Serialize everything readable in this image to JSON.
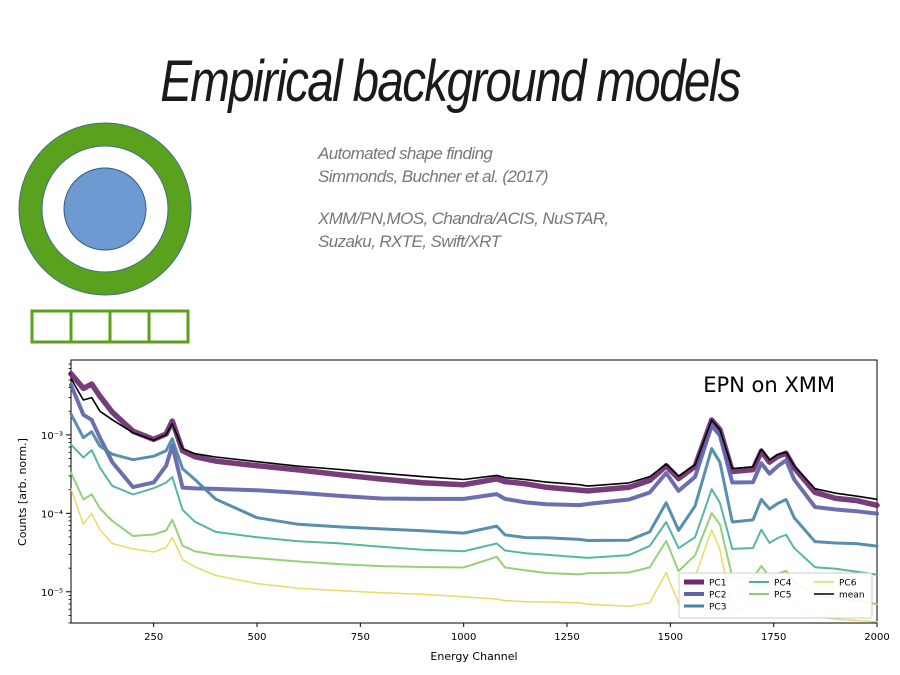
{
  "slide": {
    "title": "Empirical background models",
    "notes": [
      "Automated shape finding",
      "Simmonds, Buchner et al. (2017)",
      "XMM/PN,MOS, Chandra/ACIS, NuSTAR,",
      "Suzaku, RXTE, Swift/XRT"
    ]
  },
  "diagram": {
    "ring_color": "#5aa11e",
    "inner_color": "#6d9bd1",
    "box_count": 4
  },
  "chart_data": {
    "type": "line",
    "title": "EPN on XMM",
    "xlabel": "Energy Channel",
    "ylabel": "Counts [arb. norm.]",
    "xlim": [
      50,
      2000
    ],
    "ylim": [
      4e-06,
      0.009
    ],
    "yscale": "log",
    "x_ticks": [
      250,
      500,
      750,
      1000,
      1250,
      1500,
      1750,
      2000
    ],
    "y_ticks": [
      {
        "value": 1e-05,
        "label": "10⁻⁵"
      },
      {
        "value": 0.0001,
        "label": "10⁻⁴"
      },
      {
        "value": 0.001,
        "label": "10⁻³"
      }
    ],
    "legend_position": "lower-right",
    "x": [
      50,
      80,
      100,
      120,
      150,
      200,
      250,
      280,
      295,
      320,
      350,
      400,
      500,
      600,
      700,
      800,
      900,
      1000,
      1080,
      1100,
      1150,
      1200,
      1280,
      1300,
      1400,
      1450,
      1490,
      1520,
      1560,
      1600,
      1620,
      1650,
      1700,
      1720,
      1740,
      1760,
      1780,
      1800,
      1850,
      1900,
      1950,
      2000
    ],
    "series": [
      {
        "name": "PC1",
        "color": "#6b2c70",
        "width": 5.5,
        "values": [
          0.006,
          0.0038,
          0.0043,
          0.0031,
          0.002,
          0.00115,
          0.00088,
          0.001,
          0.00145,
          0.00062,
          0.00054,
          0.00048,
          0.00041,
          0.00035,
          0.0003,
          0.00027,
          0.00025,
          0.00024,
          0.00028,
          0.00025,
          0.00023,
          0.00021,
          0.0002,
          0.0002,
          0.00022,
          0.00026,
          0.00039,
          0.00027,
          0.0004,
          0.0016,
          0.0012,
          0.00034,
          0.00035,
          0.0006,
          0.00045,
          0.00055,
          0.0006,
          0.00038,
          0.00018,
          0.00015,
          0.000145,
          0.00013
        ]
      },
      {
        "name": "PC2",
        "color": "#5f63a8",
        "width": 4,
        "values": [
          0.0042,
          0.0018,
          0.0016,
          0.00095,
          0.00045,
          0.00021,
          0.00024,
          0.0004,
          0.00075,
          0.00022,
          0.00021,
          0.0002,
          0.00019,
          0.00018,
          0.00017,
          0.00016,
          0.000155,
          0.00015,
          0.00017,
          0.00015,
          0.00014,
          0.000135,
          0.00013,
          0.00013,
          0.000145,
          0.00018,
          0.00033,
          0.0002,
          0.0003,
          0.0013,
          0.00095,
          0.00024,
          0.00025,
          0.00045,
          0.00033,
          0.0004,
          0.00046,
          0.00026,
          0.00012,
          0.000115,
          0.00011,
          0.0001
        ]
      },
      {
        "name": "PC3",
        "color": "#4a86a8",
        "width": 3,
        "values": [
          0.0019,
          0.00095,
          0.0011,
          0.0007,
          0.00055,
          0.00048,
          0.00055,
          0.00065,
          0.0009,
          0.00036,
          0.00026,
          0.00015,
          9e-05,
          7.5e-05,
          6.8e-05,
          6.2e-05,
          5.8e-05,
          5.5e-05,
          7e-05,
          5.5e-05,
          5e-05,
          4.8e-05,
          4.5e-05,
          4.4e-05,
          4.6e-05,
          6e-05,
          0.00014,
          6e-05,
          0.00012,
          0.00065,
          0.00045,
          8e-05,
          8.5e-05,
          0.00015,
          0.00011,
          0.00013,
          0.00015,
          9e-05,
          4.5e-05,
          4.2e-05,
          4e-05,
          3.7e-05
        ]
      },
      {
        "name": "PC4",
        "color": "#48b09c",
        "width": 2,
        "values": [
          0.00075,
          0.0005,
          0.00062,
          0.00038,
          0.00023,
          0.00018,
          0.00021,
          0.00024,
          0.00028,
          0.00011,
          8e-05,
          6e-05,
          5e-05,
          4.3e-05,
          4e-05,
          3.7e-05,
          3.5e-05,
          3.4e-05,
          4.2e-05,
          3.3e-05,
          3e-05,
          2.9e-05,
          2.8e-05,
          2.8e-05,
          3e-05,
          3.8e-05,
          7.5e-05,
          3.5e-05,
          5e-05,
          0.00021,
          0.00014,
          3.5e-05,
          3.5e-05,
          6e-05,
          4.2e-05,
          5e-05,
          5.5e-05,
          3.6e-05,
          2e-05,
          1.9e-05,
          1.8e-05,
          1.7e-05
        ]
      },
      {
        "name": "PC5",
        "color": "#8ecc6a",
        "width": 2,
        "values": [
          0.00032,
          0.00015,
          0.00018,
          0.00012,
          8e-05,
          5e-05,
          5.2e-05,
          6e-05,
          8.5e-05,
          4e-05,
          3.3e-05,
          2.9e-05,
          2.6e-05,
          2.4e-05,
          2.3e-05,
          2.2e-05,
          2.1e-05,
          2e-05,
          2.7e-05,
          2e-05,
          1.9e-05,
          1.8e-05,
          1.7e-05,
          1.7e-05,
          1.7e-05,
          2e-05,
          4.5e-05,
          1.9e-05,
          3e-05,
          0.0001,
          7e-05,
          1.5e-05,
          1.5e-05,
          2.2e-05,
          1.6e-05,
          1.7e-05,
          1.8e-05,
          1.3e-05,
          9e-06,
          8.5e-06,
          8e-06,
          7e-06
        ]
      },
      {
        "name": "PC6",
        "color": "#e6d856",
        "width": 1.5,
        "values": [
          0.00021,
          7.5e-05,
          0.0001,
          6e-05,
          4e-05,
          3.5e-05,
          3.3e-05,
          3.8e-05,
          5e-05,
          2.5e-05,
          2e-05,
          1.6e-05,
          1.3e-05,
          1.15e-05,
          1.05e-05,
          9.5e-06,
          9e-06,
          8.5e-06,
          8.2e-06,
          8e-06,
          7.6e-06,
          7.3e-06,
          7e-06,
          6.8e-06,
          6.6e-06,
          7.5e-06,
          1.8e-05,
          7e-06,
          1.5e-05,
          6e-05,
          3.5e-05,
          6e-06,
          6.5e-06,
          1.3e-05,
          8e-06,
          1e-05,
          1.1e-05,
          7e-06,
          5e-06,
          4.5e-06,
          4.2e-06,
          4e-06
        ]
      },
      {
        "name": "mean",
        "color": "#000000",
        "width": 1.6,
        "values": [
          0.0052,
          0.0027,
          0.0029,
          0.002,
          0.0016,
          0.0011,
          0.00086,
          0.00098,
          0.00135,
          0.00066,
          0.00059,
          0.00054,
          0.00046,
          0.00039,
          0.00035,
          0.00032,
          0.0003,
          0.00028,
          0.00031,
          0.00028,
          0.00026,
          0.000245,
          0.000235,
          0.00023,
          0.00025,
          0.00029,
          0.00041,
          0.00029,
          0.00042,
          0.0016,
          0.0012,
          0.00037,
          0.00038,
          0.00064,
          0.00048,
          0.00058,
          0.00062,
          0.0004,
          0.0002,
          0.000175,
          0.000165,
          0.000155
        ]
      }
    ]
  }
}
